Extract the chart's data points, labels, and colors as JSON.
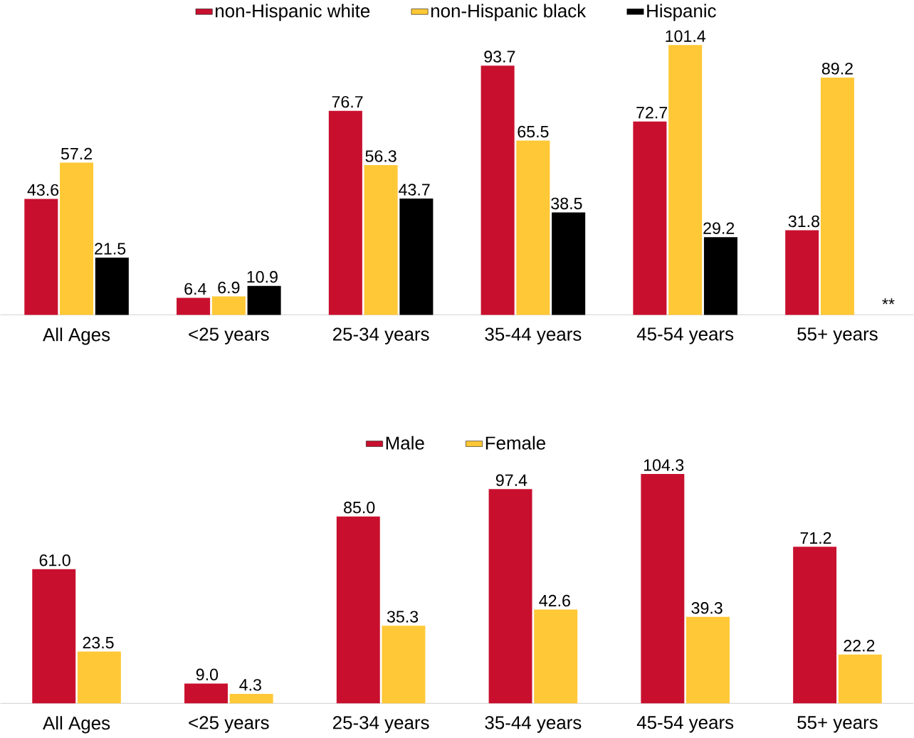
{
  "chart_data": [
    {
      "type": "bar",
      "categories": [
        "All Ages",
        "<25 years",
        "25-34 years",
        "35-44 years",
        "45-54 years",
        "55+ years"
      ],
      "series": [
        {
          "name": "non-Hispanic white",
          "color": "#c8102e",
          "values": [
            43.6,
            6.4,
            76.7,
            93.7,
            72.7,
            31.8
          ],
          "value_labels": [
            "43.6",
            "6.4",
            "76.7",
            "93.7",
            "72.7",
            "31.8"
          ]
        },
        {
          "name": "non-Hispanic black",
          "color": "#ffc836",
          "values": [
            57.2,
            6.9,
            56.3,
            65.5,
            101.4,
            89.2
          ],
          "value_labels": [
            "57.2",
            "6.9",
            "56.3",
            "65.5",
            "101.4",
            "89.2"
          ]
        },
        {
          "name": "Hispanic",
          "color": "#000000",
          "values": [
            21.5,
            10.9,
            43.7,
            38.5,
            29.2,
            null
          ],
          "value_labels": [
            "21.5",
            "10.9",
            "43.7",
            "38.5",
            "29.2",
            null
          ]
        }
      ],
      "tick_labels": "x",
      "legend": "top",
      "annotations": [
        "**"
      ]
    },
    {
      "type": "bar",
      "categories": [
        "All Ages",
        "<25 years",
        "25-34 years",
        "35-44 years",
        "45-54 years",
        "55+ years"
      ],
      "series": [
        {
          "name": "Male",
          "color": "#c8102e",
          "values": [
            61.0,
            9.0,
            85.0,
            97.4,
            104.3,
            71.2
          ],
          "value_labels": [
            "61.0",
            "9.0",
            "85.0",
            "97.4",
            "104.3",
            "71.2"
          ]
        },
        {
          "name": "Female",
          "color": "#ffc836",
          "values": [
            23.5,
            4.3,
            35.3,
            42.6,
            39.3,
            22.2
          ],
          "value_labels": [
            "23.5",
            "4.3",
            "35.3",
            "42.6",
            "39.3",
            "22.2"
          ]
        }
      ],
      "tick_labels": "x",
      "legend": "top"
    }
  ]
}
